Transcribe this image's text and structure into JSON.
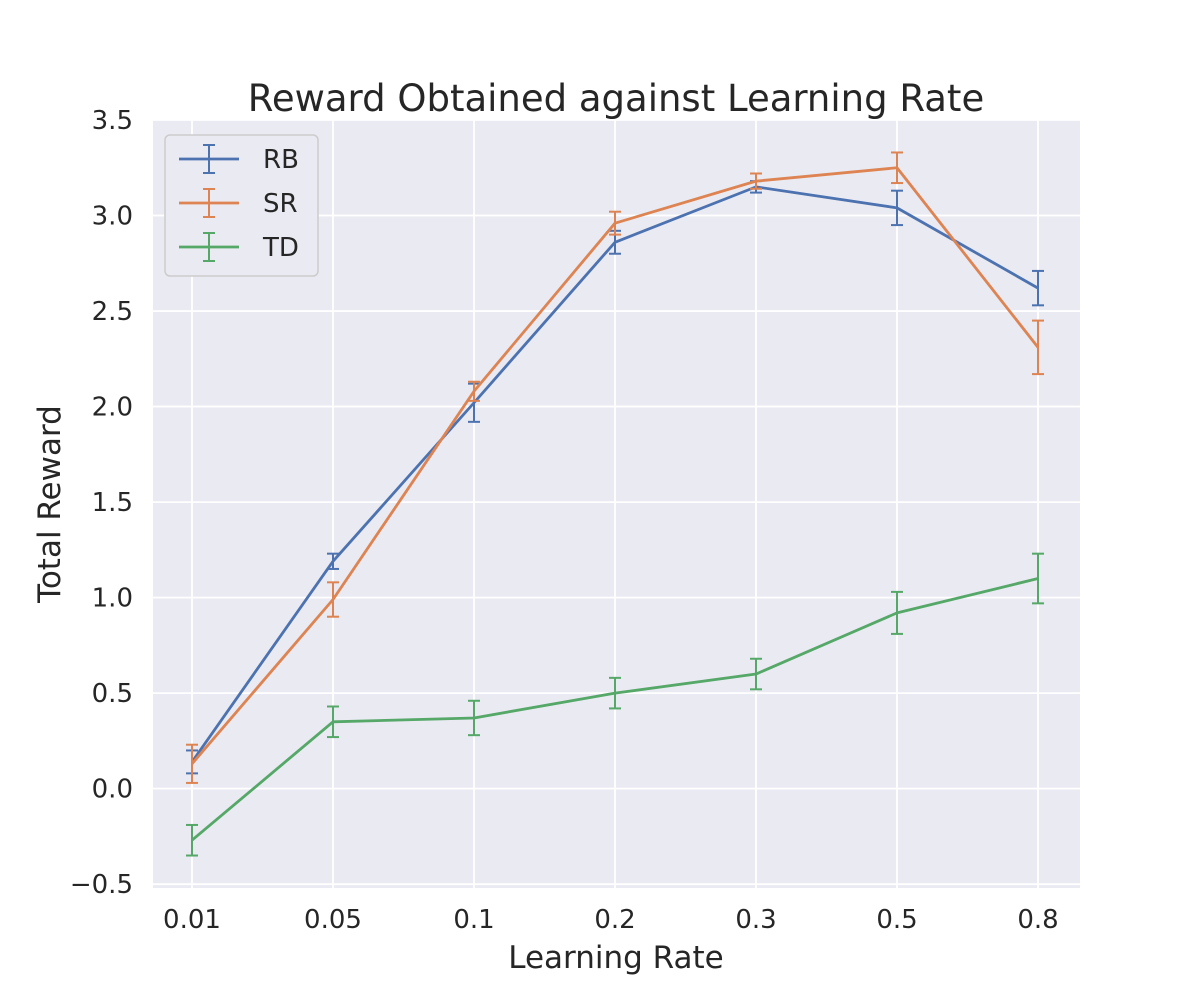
{
  "chart_data": {
    "type": "line",
    "title": "Reward Obtained against Learning Rate",
    "xlabel": "Learning Rate",
    "ylabel": "Total Reward",
    "categories": [
      "0.01",
      "0.05",
      "0.1",
      "0.2",
      "0.3",
      "0.5",
      "0.8"
    ],
    "ylim": [
      -0.52,
      3.5
    ],
    "yticks": [
      -0.5,
      0.0,
      0.5,
      1.0,
      1.5,
      2.0,
      2.5,
      3.0,
      3.5
    ],
    "ytick_labels": [
      "−0.5",
      "0.0",
      "0.5",
      "1.0",
      "1.5",
      "2.0",
      "2.5",
      "3.0",
      "3.5"
    ],
    "grid": true,
    "legend_position": "top-left",
    "series": [
      {
        "name": "RB",
        "color": "#4c72b0",
        "values": [
          0.14,
          1.19,
          2.02,
          2.86,
          3.15,
          3.04,
          2.62
        ],
        "errors": [
          0.06,
          0.04,
          0.1,
          0.06,
          0.03,
          0.09,
          0.09
        ]
      },
      {
        "name": "SR",
        "color": "#dd8452",
        "values": [
          0.13,
          0.99,
          2.08,
          2.96,
          3.18,
          3.25,
          2.31
        ],
        "errors": [
          0.1,
          0.09,
          0.05,
          0.06,
          0.04,
          0.08,
          0.14
        ]
      },
      {
        "name": "TD",
        "color": "#55a868",
        "values": [
          -0.27,
          0.35,
          0.37,
          0.5,
          0.6,
          0.92,
          1.1
        ],
        "errors": [
          0.08,
          0.08,
          0.09,
          0.08,
          0.08,
          0.11,
          0.13
        ]
      }
    ]
  }
}
